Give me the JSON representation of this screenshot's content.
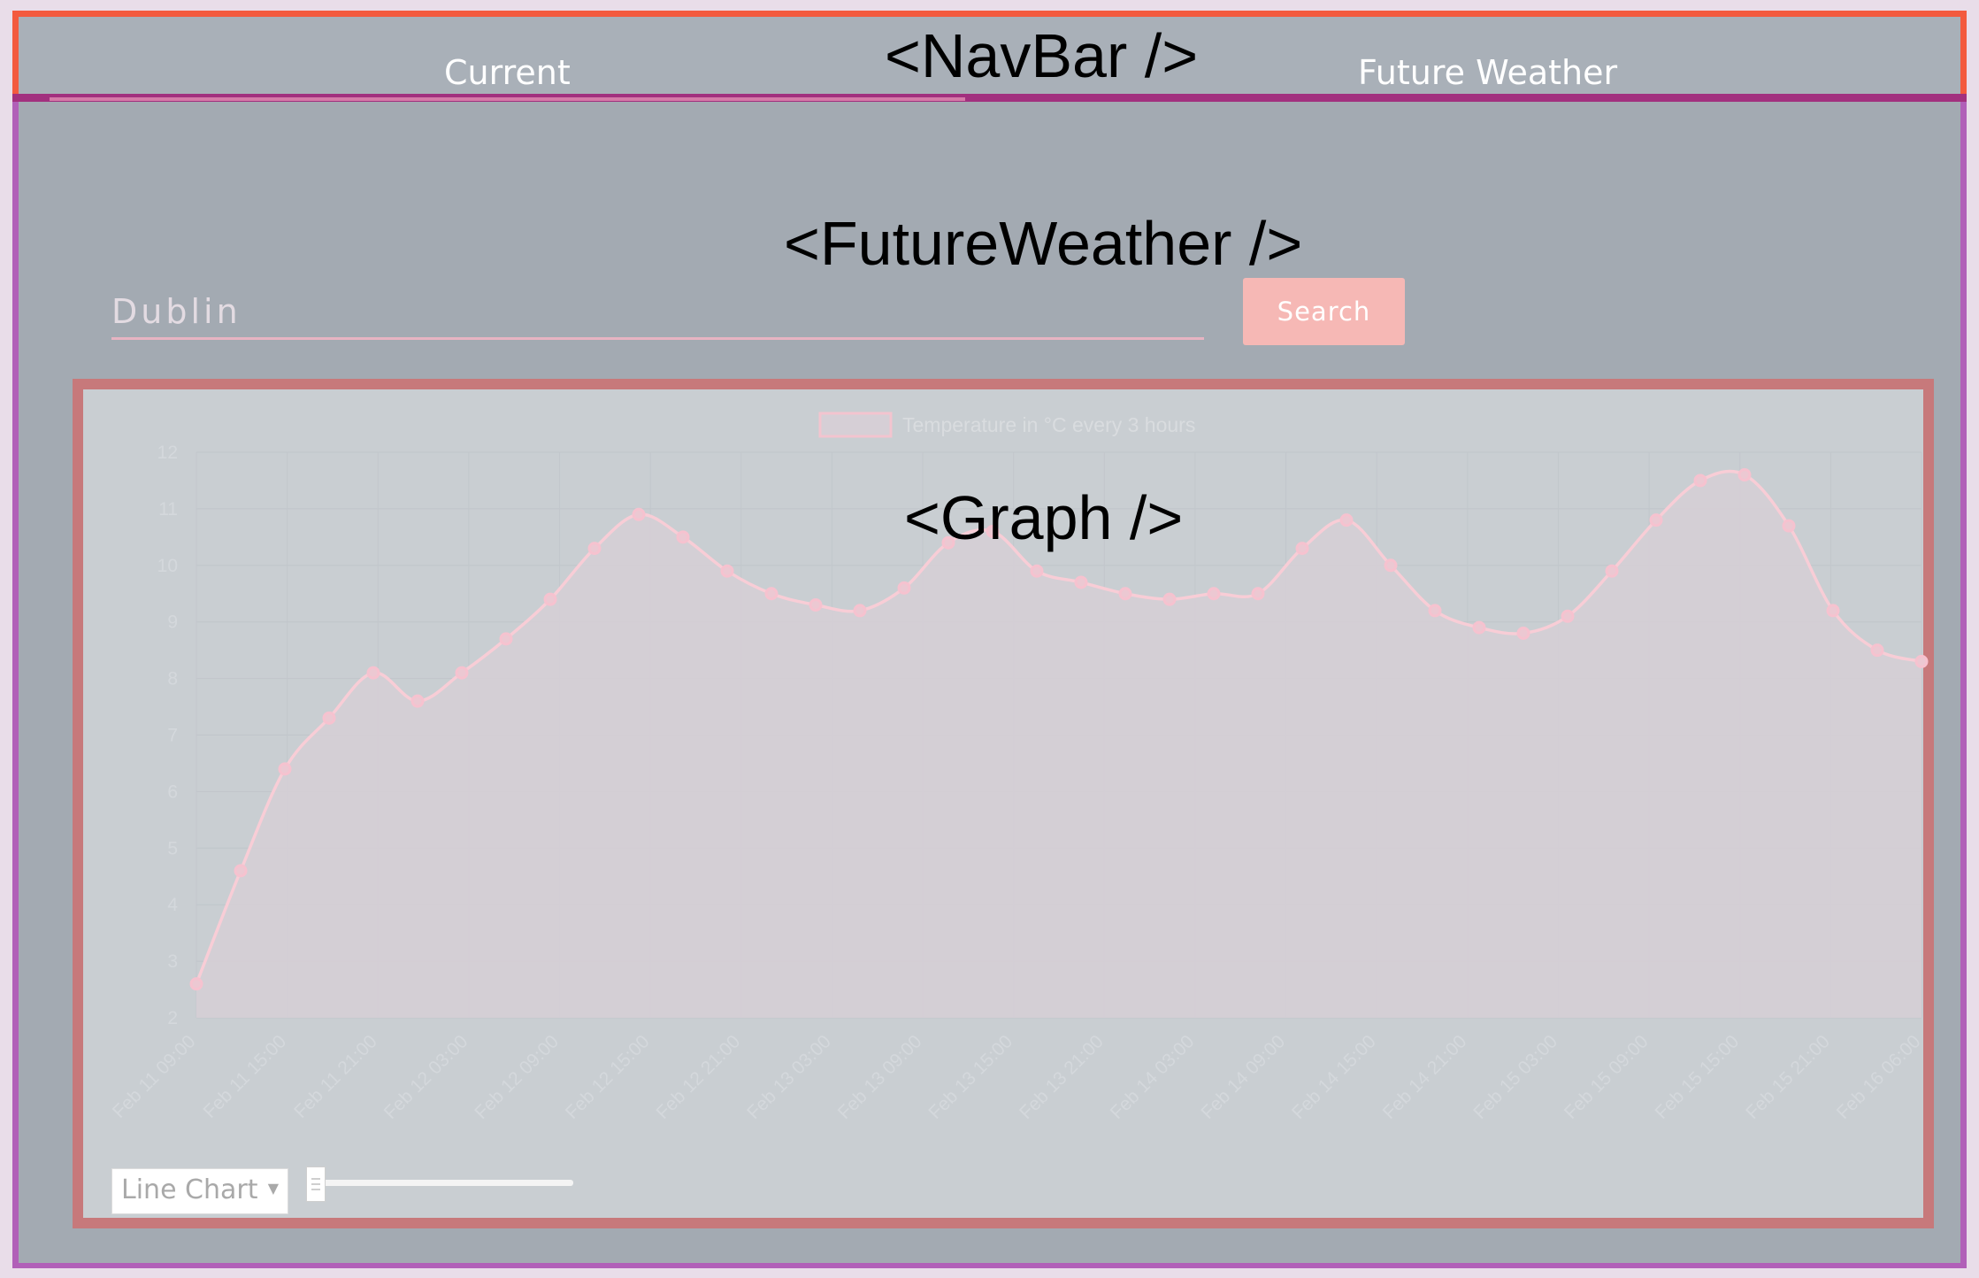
{
  "navbar": {
    "component_label": "<NavBar />",
    "links": [
      {
        "label": "Current",
        "active": false
      },
      {
        "label": "Future Weather",
        "active": true
      }
    ]
  },
  "future_weather": {
    "component_label": "<FutureWeather />",
    "search": {
      "value": "",
      "placeholder": "Dublin",
      "button_label": "Search"
    }
  },
  "graph": {
    "component_label": "<Graph />",
    "chart_type_label": "Line Chart",
    "chart_type_arrow": "▼",
    "slider_value": 0
  },
  "colors": {
    "navbar_border": "#f35a3e",
    "app_border": "#b160b8",
    "graph_border": "#c7797b",
    "search_button": "#f6b8b5",
    "series_line": "#f8cdd6",
    "series_fill": "#d6cfd6"
  },
  "chart_data": {
    "type": "line",
    "title": "",
    "xlabel": "",
    "ylabel": "",
    "series": [
      {
        "name": "Temperature in °C every 3 hours",
        "values": [
          2.6,
          4.6,
          6.4,
          7.3,
          8.1,
          7.6,
          8.1,
          8.7,
          9.4,
          10.3,
          10.9,
          10.5,
          9.9,
          9.5,
          9.3,
          9.2,
          9.6,
          10.4,
          10.6,
          9.9,
          9.7,
          9.5,
          9.4,
          9.5,
          9.5,
          10.3,
          10.8,
          10.0,
          9.2,
          8.9,
          8.8,
          9.1,
          9.9,
          10.8,
          11.5,
          11.6,
          10.7,
          9.2,
          8.5,
          8.3
        ]
      }
    ],
    "x_tick_labels": [
      "Feb 11 09:00",
      "Feb 11 15:00",
      "Feb 11 21:00",
      "Feb 12 03:00",
      "Feb 12 09:00",
      "Feb 12 15:00",
      "Feb 12 21:00",
      "Feb 13 03:00",
      "Feb 13 09:00",
      "Feb 13 15:00",
      "Feb 13 21:00",
      "Feb 14 03:00",
      "Feb 14 09:00",
      "Feb 14 15:00",
      "Feb 14 21:00",
      "Feb 15 03:00",
      "Feb 15 09:00",
      "Feb 15 15:00",
      "Feb 15 21:00",
      "Feb 16 06:00"
    ],
    "y_ticks": [
      2,
      3,
      4,
      5,
      6,
      7,
      8,
      9,
      10,
      11,
      12
    ],
    "ylim": [
      2,
      12
    ],
    "grid": true,
    "legend": "top-center",
    "fill": true
  }
}
